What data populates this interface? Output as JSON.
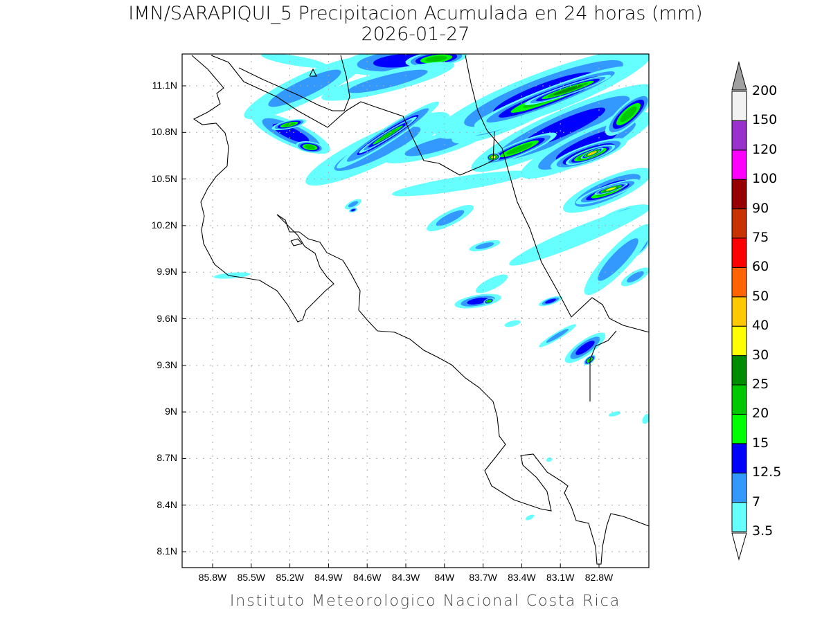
{
  "title": "IMN/SARAPIQUI_5 Precipitacion Acumulada en 24 horas (mm)",
  "date": "2026-01-27",
  "credit": "Instituto Meteorologico Nacional Costa Rica",
  "chart_data": {
    "type": "heatmap",
    "title": "IMN/SARAPIQUI_5 Precipitacion Acumulada en 24 horas (mm)",
    "subtitle": "2026-01-27",
    "units": "mm",
    "lat_ticks": [
      "11.1N",
      "10.8N",
      "10.5N",
      "10.2N",
      "9.9N",
      "9.6N",
      "9.3N",
      "9N",
      "8.7N",
      "8.4N",
      "8.1N"
    ],
    "lon_ticks": [
      "85.8W",
      "85.5W",
      "85.2W",
      "84.9W",
      "84.6W",
      "84.3W",
      "84W",
      "83.7W",
      "83.4W",
      "83.1W",
      "82.8W"
    ],
    "lat_range": [
      8.0,
      11.32
    ],
    "lon_range": [
      86.0,
      82.62
    ],
    "grid": true,
    "legend_placement": "right",
    "legend": {
      "levels": [
        "3.5",
        "7",
        "12.5",
        "15",
        "20",
        "25",
        "30",
        "40",
        "50",
        "60",
        "75",
        "90",
        "100",
        "120",
        "150",
        "200"
      ],
      "colors": [
        "#66ffff",
        "#3399ff",
        "#0000ff",
        "#00ff00",
        "#00c800",
        "#008c00",
        "#ffff00",
        "#ffc800",
        "#ff6400",
        "#ff0000",
        "#c83200",
        "#960000",
        "#ff00ff",
        "#9932cc",
        "#f2f2f2"
      ],
      "over_color": "#a0a0a0",
      "under_color": "#ffffff"
    }
  }
}
